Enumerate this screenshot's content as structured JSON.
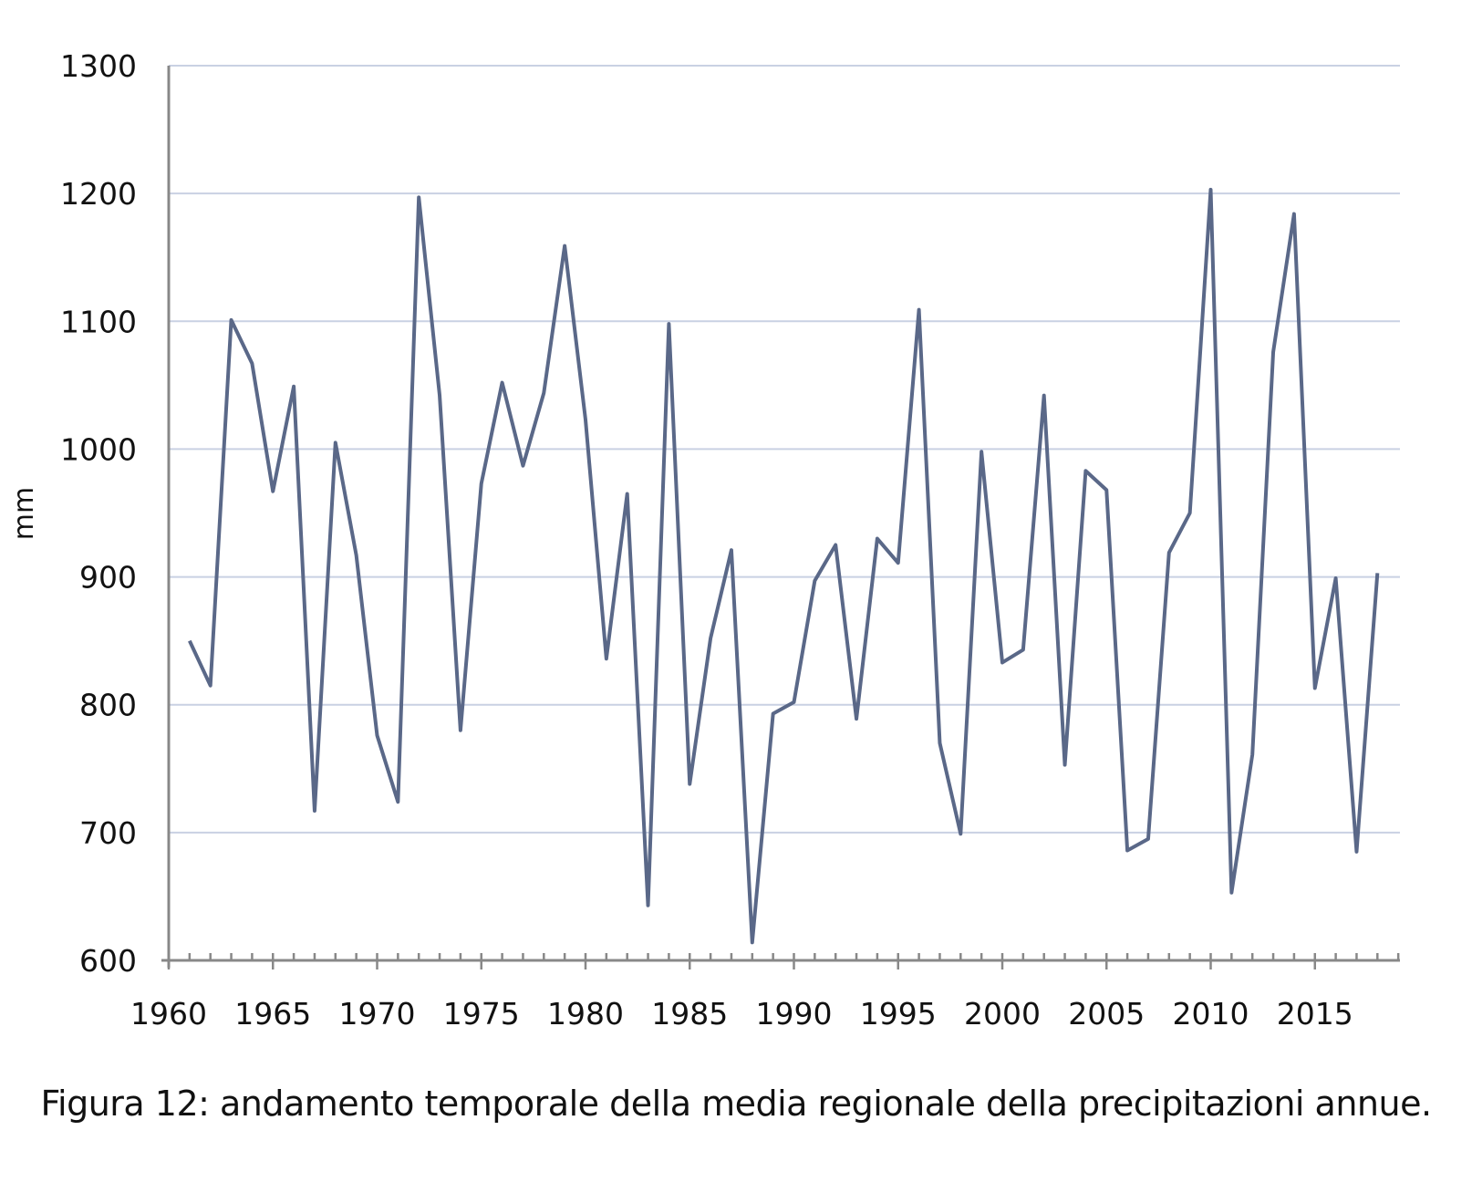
{
  "chart_data": {
    "type": "line",
    "title": "",
    "xlabel": "",
    "ylabel": "mm",
    "ylim": [
      600,
      1300
    ],
    "xlim": [
      1960,
      2019
    ],
    "yticks": [
      600,
      700,
      800,
      900,
      1000,
      1100,
      1200,
      1300
    ],
    "xticks": [
      1960,
      1965,
      1970,
      1975,
      1980,
      1985,
      1990,
      1995,
      2000,
      2005,
      2010,
      2015
    ],
    "grid": "horizontal",
    "line_color": "#5a6888",
    "grid_color": "#c9d1e3",
    "x": [
      1961,
      1962,
      1963,
      1964,
      1965,
      1966,
      1967,
      1968,
      1969,
      1970,
      1971,
      1972,
      1973,
      1974,
      1975,
      1976,
      1977,
      1978,
      1979,
      1980,
      1981,
      1982,
      1983,
      1984,
      1985,
      1986,
      1987,
      1988,
      1989,
      1990,
      1991,
      1992,
      1993,
      1994,
      1995,
      1996,
      1997,
      1998,
      1999,
      2000,
      2001,
      2002,
      2003,
      2004,
      2005,
      2006,
      2007,
      2008,
      2009,
      2010,
      2011,
      2012,
      2013,
      2014,
      2015,
      2016,
      2017,
      2018
    ],
    "series": [
      {
        "name": "media regionale precipitazioni annue",
        "values": [
          850,
          815,
          1101,
          1067,
          967,
          1049,
          717,
          1005,
          917,
          776,
          724,
          1197,
          1042,
          780,
          973,
          1052,
          987,
          1044,
          1159,
          1023,
          836,
          965,
          643,
          1098,
          738,
          852,
          921,
          614,
          793,
          802,
          897,
          925,
          789,
          930,
          911,
          1109,
          770,
          699,
          998,
          833,
          843,
          1042,
          753,
          983,
          968,
          686,
          695,
          919,
          950,
          1203,
          653,
          761,
          1076,
          1184,
          813,
          899,
          685,
          903
        ]
      }
    ]
  },
  "caption": "Figura 12: andamento temporale della media regionale della precipitazioni annue."
}
